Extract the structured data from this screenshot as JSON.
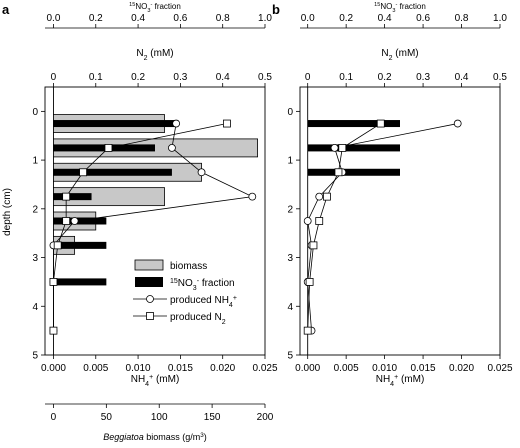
{
  "panels": {
    "a": {
      "label": "a"
    },
    "b": {
      "label": "b"
    }
  },
  "axes_text": {
    "y_label": "depth (cm)",
    "top_fraction_label": "15NO3- fraction",
    "top_n2_label": "N2 (mM)",
    "bottom_nh4_label": "NH4+ (mM)",
    "bottom_biomass_label": "Beggiatoa biomass (g/m3)",
    "fraction_ticks": [
      "0.0",
      "0.2",
      "0.4",
      "0.6",
      "0.8",
      "1.0"
    ],
    "n2_ticks": [
      "0",
      "0.1",
      "0.2",
      "0.3",
      "0.4",
      "0.5"
    ],
    "nh4_ticks": [
      "0.000",
      "0.005",
      "0.010",
      "0.015",
      "0.020",
      "0.025"
    ],
    "biomass_ticks": [
      "0",
      "50",
      "100",
      "150",
      "200"
    ],
    "depth_ticks": [
      "0",
      "1",
      "2",
      "3",
      "4",
      "5"
    ]
  },
  "legend": {
    "biomass": "biomass",
    "fraction": "15NO3- fraction",
    "nh4": "produced NH4+",
    "n2": "produced N2"
  },
  "chart_data": [
    {
      "panel": "a",
      "type": "bar",
      "ylim_depth": [
        5,
        -0.5
      ],
      "nh4_xlim": [
        -0.001,
        0.025
      ],
      "n2_xlim": [
        -0.02,
        0.5
      ],
      "fraction_xlim": [
        -0.04,
        1.0
      ],
      "biomass_xlim": [
        -8,
        200
      ],
      "series": [
        {
          "name": "biomass",
          "unit": "g/m3",
          "depth": [
            0.25,
            0.75,
            1.25,
            1.75,
            2.25,
            2.75
          ],
          "values": [
            105,
            193,
            140,
            105,
            40,
            20
          ]
        },
        {
          "name": "15NO3- fraction",
          "depth": [
            0.25,
            0.75,
            1.25,
            1.75,
            2.25,
            2.75,
            3.5
          ],
          "values": [
            0.59,
            0.48,
            0.56,
            0.18,
            0.25,
            0.25,
            0.25
          ]
        },
        {
          "name": "produced NH4+",
          "unit": "mM",
          "depth": [
            0.25,
            0.75,
            1.25,
            1.75,
            2.25,
            2.75,
            3.5,
            4.5
          ],
          "values": [
            0.0145,
            0.014,
            0.0175,
            0.0235,
            0.0025,
            0.0,
            0.0,
            0.0
          ]
        },
        {
          "name": "produced N2",
          "unit": "mM",
          "depth": [
            0.25,
            0.75,
            1.25,
            1.75,
            2.25,
            2.75,
            3.5,
            4.5
          ],
          "values": [
            0.41,
            0.13,
            0.07,
            0.03,
            0.03,
            0.01,
            0.0,
            0.0
          ]
        }
      ]
    },
    {
      "panel": "b",
      "type": "bar",
      "ylim_depth": [
        5,
        -0.5
      ],
      "nh4_xlim": [
        -0.001,
        0.025
      ],
      "n2_xlim": [
        -0.02,
        0.5
      ],
      "fraction_xlim": [
        -0.04,
        1.0
      ],
      "series": [
        {
          "name": "15NO3- fraction",
          "depth": [
            0.25,
            0.75,
            1.25
          ],
          "values": [
            0.48,
            0.48,
            0.48
          ]
        },
        {
          "name": "produced NH4+",
          "unit": "mM",
          "depth": [
            0.25,
            0.75,
            1.25,
            1.75,
            2.25,
            2.75,
            3.5,
            4.5
          ],
          "values": [
            0.0195,
            0.0035,
            0.0045,
            0.0015,
            0.0,
            0.0005,
            0.0,
            0.0005
          ]
        },
        {
          "name": "produced N2",
          "unit": "mM",
          "depth": [
            0.25,
            0.75,
            1.25,
            1.75,
            2.25,
            2.75,
            3.5,
            4.5
          ],
          "values": [
            0.19,
            0.09,
            0.08,
            0.05,
            0.03,
            0.015,
            0.005,
            0.0
          ]
        }
      ]
    }
  ]
}
